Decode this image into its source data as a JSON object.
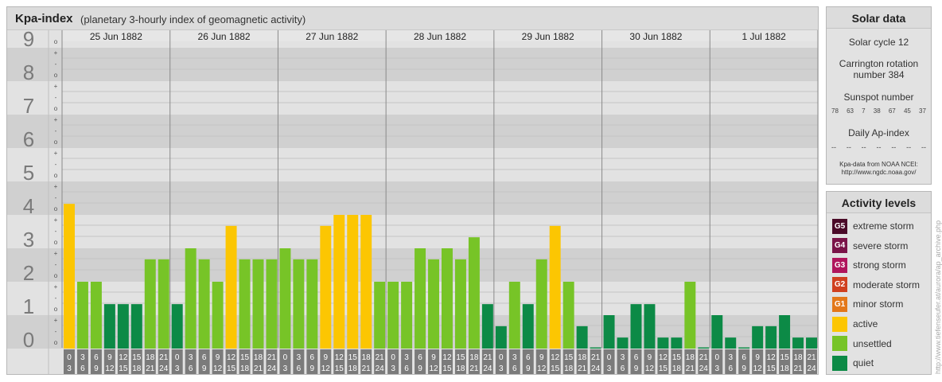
{
  "title": {
    "main": "Kpa-index",
    "sub": "(planetary 3-hourly index of geomagnetic activity)"
  },
  "chart_data": {
    "type": "bar",
    "title": "Kpa-index",
    "subtitle": "(planetary 3-hourly index of geomagnetic activity)",
    "days": [
      "25 Jun 1882",
      "26 Jun 1882",
      "27 Jun 1882",
      "28 Jun 1882",
      "29 Jun 1882",
      "30 Jun 1882",
      "1 Jul 1882"
    ],
    "interval_top": [
      "0",
      "3",
      "6",
      "9",
      "12",
      "15",
      "18",
      "21"
    ],
    "interval_bottom": [
      "3",
      "6",
      "9",
      "12",
      "15",
      "18",
      "21",
      "24"
    ],
    "y_ticks": [
      "0",
      "1",
      "2",
      "3",
      "4",
      "5",
      "6",
      "7",
      "8",
      "9"
    ],
    "sub_ticks": [
      "+",
      "o",
      "-"
    ],
    "ylim": [
      0,
      9.33
    ],
    "values": [
      4.33,
      2.0,
      2.0,
      1.33,
      1.33,
      1.33,
      2.67,
      2.67,
      1.33,
      3.0,
      2.67,
      2.0,
      3.67,
      2.67,
      2.67,
      2.67,
      3.0,
      2.67,
      2.67,
      3.67,
      4.0,
      4.0,
      4.0,
      2.0,
      2.0,
      2.0,
      3.0,
      2.67,
      3.0,
      2.67,
      3.33,
      1.33,
      0.67,
      2.0,
      1.33,
      2.67,
      3.67,
      2.0,
      0.67,
      0,
      1.0,
      0.33,
      1.33,
      1.33,
      0.33,
      0.33,
      2.0,
      0,
      1.0,
      0.33,
      0,
      0.67,
      0.67,
      1.0,
      0.33,
      0.33
    ],
    "level_colors": {
      "quiet": "#0c8a46",
      "unsettled": "#77c427",
      "active": "#fcc602",
      "G1": "#e3781a",
      "G2": "#d0401f",
      "G3": "#b0155c",
      "G4": "#7a1448",
      "G5": "#4a0a28"
    }
  },
  "solar": {
    "title": "Solar data",
    "cycle": "Solar cycle 12",
    "carrington_line1": "Carrington rotation",
    "carrington_line2": "number 384",
    "sunspot_title": "Sunspot number",
    "sunspots": [
      "78",
      "63",
      "7",
      "38",
      "67",
      "45",
      "37"
    ],
    "ap_title": "Daily Ap-index",
    "ap_values": [
      "--",
      "--",
      "--",
      "--",
      "--",
      "--",
      "--"
    ],
    "source_line1": "Kpa-data from NOAA NCEI:",
    "source_line2": "http://www.ngdc.noaa.gov/"
  },
  "legend": {
    "title": "Activity levels",
    "items": [
      {
        "code": "G5",
        "label": "extreme storm",
        "color": "#4a0a28"
      },
      {
        "code": "G4",
        "label": "severe storm",
        "color": "#7a1448"
      },
      {
        "code": "G3",
        "label": "strong storm",
        "color": "#b0155c"
      },
      {
        "code": "G2",
        "label": "moderate storm",
        "color": "#d0401f"
      },
      {
        "code": "G1",
        "label": "minor storm",
        "color": "#e3781a"
      },
      {
        "code": "",
        "label": "active",
        "color": "#fcc602"
      },
      {
        "code": "",
        "label": "unsettled",
        "color": "#77c427"
      },
      {
        "code": "",
        "label": "quiet",
        "color": "#0c8a46"
      }
    ]
  },
  "watermark": "http://www.tiefenseufer.at/aurora/ap_archive.php"
}
